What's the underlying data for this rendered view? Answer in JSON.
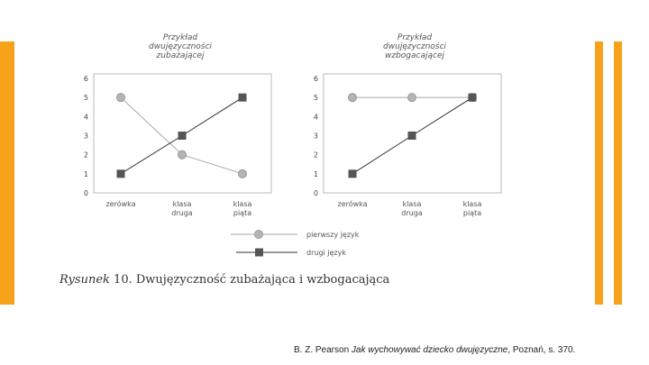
{
  "caption": {
    "label": "Rysunek",
    "number": "10.",
    "text": "Dwujęzyczność zubażająca i wzbogacająca"
  },
  "legend": [
    {
      "label": "pierwszy język",
      "marker": "circle",
      "color": "#b0b0b0"
    },
    {
      "label": "drugi język",
      "marker": "square",
      "color": "#555555"
    }
  ],
  "source": {
    "prefix": "B. Z. Pearson ",
    "title": "Jak wychowywać dziecko dwujęzyczne",
    "suffix": ", Poznań, s. 370."
  },
  "chart_data": [
    {
      "type": "line",
      "title": "Przykład dwujęzyczności zubażającej",
      "title_lines": [
        "Przykład",
        "dwujęzyczności",
        "zubażającej"
      ],
      "categories": [
        "zerówka",
        "klasa druga",
        "klasa piąta"
      ],
      "category_lines": [
        [
          "zerówka"
        ],
        [
          "klasa",
          "druga"
        ],
        [
          "klasa",
          "piąta"
        ]
      ],
      "ylim": [
        0,
        6
      ],
      "yticks": [
        "0",
        "1",
        "2",
        "3",
        "4",
        "5",
        "6"
      ],
      "grid": false,
      "series": [
        {
          "name": "pierwszy język",
          "values": [
            5,
            2,
            1
          ]
        },
        {
          "name": "drugi język",
          "values": [
            1,
            3,
            5
          ]
        }
      ]
    },
    {
      "type": "line",
      "title": "Przykład dwujęzyczności wzbogacającej",
      "title_lines": [
        "Przykład",
        "dwujęzyczności",
        "wzbogacającej"
      ],
      "categories": [
        "zerówka",
        "klasa druga",
        "klasa piąta"
      ],
      "category_lines": [
        [
          "zerówka"
        ],
        [
          "klasa",
          "druga"
        ],
        [
          "klasa",
          "piąta"
        ]
      ],
      "ylim": [
        0,
        6
      ],
      "yticks": [
        "0",
        "1",
        "2",
        "3",
        "4",
        "5",
        "6"
      ],
      "grid": false,
      "series": [
        {
          "name": "pierwszy język",
          "values": [
            5,
            5,
            5
          ]
        },
        {
          "name": "drugi język",
          "values": [
            1,
            3,
            5
          ]
        }
      ]
    }
  ]
}
